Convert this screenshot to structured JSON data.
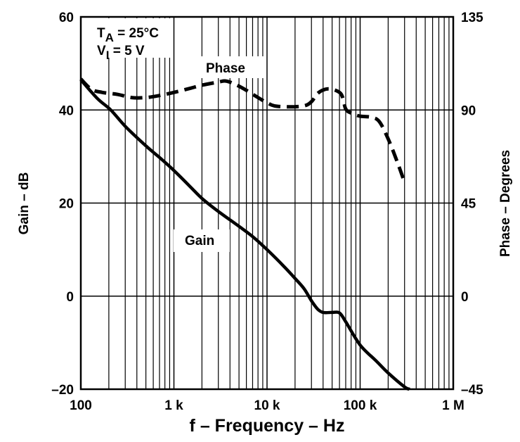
{
  "chart_data": {
    "type": "line",
    "title": "",
    "xlabel": "f – Frequency – Hz",
    "ylabel": "Gain – dB",
    "y2label": "Phase – Degrees",
    "xscale": "log",
    "xlim": [
      100,
      1000000
    ],
    "ylim": [
      -20,
      60
    ],
    "y2lim": [
      -45,
      135
    ],
    "grid": true,
    "x_ticks": [
      {
        "value": 100,
        "label": "100"
      },
      {
        "value": 1000,
        "label": "1 k"
      },
      {
        "value": 10000,
        "label": "10 k"
      },
      {
        "value": 100000,
        "label": "100 k"
      },
      {
        "value": 1000000,
        "label": "1 M"
      }
    ],
    "y_ticks": [
      {
        "value": 60,
        "label": "60"
      },
      {
        "value": 40,
        "label": "40"
      },
      {
        "value": 20,
        "label": "20"
      },
      {
        "value": 0,
        "label": "0"
      },
      {
        "value": -20,
        "label": "–20"
      }
    ],
    "y2_ticks": [
      {
        "value": 135,
        "label": "135"
      },
      {
        "value": 90,
        "label": "90"
      },
      {
        "value": 45,
        "label": "45"
      },
      {
        "value": 0,
        "label": "0"
      },
      {
        "value": -45,
        "label": "–45"
      }
    ],
    "annotations": [
      {
        "text": "TA = 25°C",
        "main": "T",
        "sub": "A",
        "rest": " = 25°C"
      },
      {
        "text": "VI = 5 V",
        "main": "V",
        "sub": "I",
        "rest": " = 5 V"
      }
    ],
    "series": [
      {
        "name": "Gain",
        "axis": "left",
        "style": "solid",
        "label": "Gain",
        "x": [
          100,
          150,
          210,
          300,
          500,
          700,
          1000,
          1500,
          2000,
          3000,
          5000,
          7000,
          10000,
          15000,
          20000,
          25000,
          30000,
          35000,
          40000,
          50000,
          60000,
          70000,
          100000,
          150000,
          200000,
          300000,
          340000
        ],
        "y": [
          46.5,
          42.5,
          40,
          36.5,
          32.3,
          29.8,
          27,
          23.5,
          21,
          18.2,
          15,
          12.8,
          10,
          6.5,
          3.8,
          1.6,
          -1.0,
          -2.8,
          -3.5,
          -3.5,
          -3.6,
          -5.5,
          -10.5,
          -14,
          -16.5,
          -19.5,
          -20
        ]
      },
      {
        "name": "Phase",
        "axis": "right",
        "style": "dashed",
        "label": "Phase",
        "x": [
          100,
          130,
          170,
          250,
          350,
          500,
          700,
          1000,
          1500,
          2000,
          3000,
          3600,
          4500,
          6000,
          8000,
          10000,
          12000,
          17000,
          25000,
          30000,
          35000,
          42000,
          50000,
          60000,
          65000,
          70000,
          80000,
          100000,
          130000,
          160000,
          200000,
          250000,
          300000
        ],
        "y": [
          105,
          100,
          98.5,
          97.5,
          96,
          96,
          97,
          98.5,
          100.5,
          102,
          103.5,
          104,
          102.5,
          99.5,
          96,
          93.5,
          92,
          91.5,
          92,
          94,
          98,
          100,
          100,
          98.5,
          96,
          90.5,
          88.5,
          87,
          86.5,
          84.5,
          76,
          65,
          55
        ]
      }
    ]
  }
}
